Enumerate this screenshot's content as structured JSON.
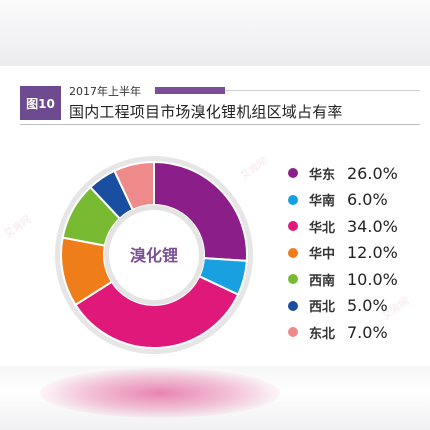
{
  "header": {
    "figure_label": "图10",
    "subtitle": "2017年上半年",
    "title": "国内工程项目市场溴化锂机组区域占有率"
  },
  "chart_data": {
    "type": "pie",
    "variant": "donut",
    "title": "国内工程项目市场溴化锂机组区域占有率",
    "center_label": "溴化锂",
    "categories": [
      "华东",
      "华南",
      "华北",
      "华中",
      "西南",
      "西北",
      "东北"
    ],
    "values": [
      26.0,
      6.0,
      34.0,
      12.0,
      10.0,
      5.0,
      7.0
    ],
    "value_labels": [
      "26.0%",
      "6.0%",
      "34.0%",
      "12.0%",
      "10.0%",
      "5.0%",
      "7.0%"
    ],
    "colors": [
      "#8c1e8a",
      "#18a0e0",
      "#e0187a",
      "#ef7d1a",
      "#78bb32",
      "#1a4ea0",
      "#ee8a8a"
    ],
    "start_angle_deg": 0,
    "direction": "clockwise",
    "legend": "right"
  }
}
